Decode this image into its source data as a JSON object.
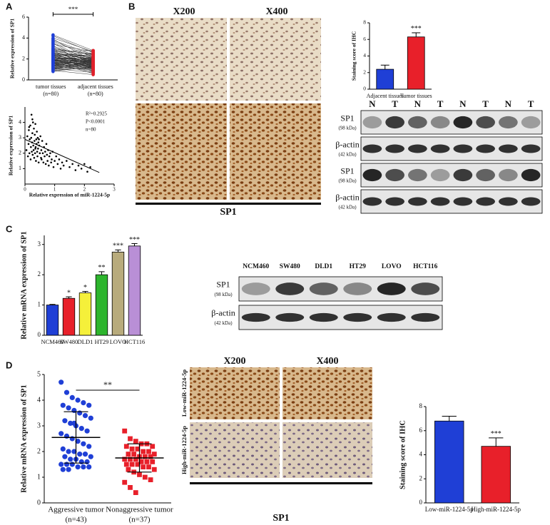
{
  "panel_labels": [
    "A",
    "B",
    "C",
    "D"
  ],
  "chart_data": [
    {
      "type": "paired",
      "ylabel": "Relative expression of SP1",
      "categories": [
        "tumor tissues",
        "adjacent tissues"
      ],
      "category_notes": [
        "(n=80)",
        "(n=80)"
      ],
      "colors": [
        "#1f3fd6",
        "#e0202a"
      ],
      "values": [
        [
          4.2,
          3.9,
          3.7,
          3.5,
          3.4,
          3.3,
          3.2,
          3.1,
          3.0,
          3.0,
          2.9,
          2.9,
          2.8,
          2.8,
          2.7,
          2.7,
          2.6,
          2.6,
          2.5,
          2.5,
          2.5,
          2.4,
          2.4,
          2.4,
          2.3,
          2.3,
          2.3,
          2.2,
          2.2,
          2.2,
          2.1,
          2.1,
          2.1,
          2.0,
          2.0,
          2.0,
          2.0,
          1.9,
          1.9,
          1.9,
          1.9,
          1.8,
          1.8,
          1.8,
          1.8,
          1.7,
          1.7,
          1.7,
          1.7,
          1.6,
          1.6,
          1.6,
          1.6,
          1.5,
          1.5,
          1.5,
          1.5,
          1.4,
          1.4,
          1.4,
          1.4,
          1.3,
          1.3,
          1.3,
          1.2,
          1.2,
          1.2,
          1.1,
          1.1,
          1.1,
          1.0,
          1.0,
          1.0,
          0.9,
          0.9,
          0.8,
          4.0,
          3.6,
          3.8,
          4.3
        ],
        [
          2.6,
          1.8,
          2.2,
          1.4,
          2.7,
          1.1,
          2.0,
          1.6,
          2.4,
          0.9,
          1.7,
          2.5,
          1.2,
          2.1,
          1.5,
          2.8,
          1.0,
          1.9,
          2.3,
          1.3,
          2.0,
          1.6,
          0.8,
          2.2,
          1.4,
          1.8,
          2.6,
          1.1,
          1.7,
          2.4,
          1.5,
          1.9,
          2.1,
          1.2,
          0.7,
          1.6,
          2.0,
          1.3,
          1.8,
          2.5,
          1.0,
          1.7,
          2.3,
          1.4,
          1.9,
          0.6,
          1.5,
          2.1,
          1.2,
          1.8,
          1.6,
          0.9,
          2.0,
          1.3,
          1.7,
          2.2,
          1.1,
          1.5,
          1.9,
          1.4,
          0.8,
          1.6,
          1.2,
          2.0,
          1.0,
          1.8,
          1.4,
          1.3,
          0.7,
          1.7,
          1.5,
          1.1,
          1.9,
          1.2,
          0.5,
          1.3,
          2.7,
          1.6,
          2.4,
          2.8
        ]
      ],
      "ylim": [
        0,
        6
      ],
      "yticks": [
        0,
        2,
        4,
        6
      ],
      "annotation": "***"
    },
    {
      "type": "scatter",
      "xlabel": "Relative expression of miR-1224-5p",
      "ylabel": "Relative expression of SP1",
      "x": [
        0.05,
        0.08,
        0.1,
        0.12,
        0.13,
        0.15,
        0.16,
        0.18,
        0.19,
        0.2,
        0.21,
        0.22,
        0.23,
        0.24,
        0.25,
        0.26,
        0.27,
        0.28,
        0.29,
        0.3,
        0.31,
        0.32,
        0.33,
        0.34,
        0.35,
        0.36,
        0.37,
        0.38,
        0.39,
        0.4,
        0.41,
        0.42,
        0.43,
        0.44,
        0.45,
        0.46,
        0.48,
        0.5,
        0.52,
        0.54,
        0.55,
        0.56,
        0.58,
        0.6,
        0.62,
        0.64,
        0.66,
        0.68,
        0.7,
        0.72,
        0.74,
        0.76,
        0.78,
        0.8,
        0.82,
        0.85,
        0.88,
        0.9,
        0.93,
        0.96,
        1.0,
        1.05,
        1.1,
        1.15,
        1.2,
        1.25,
        1.3,
        1.4,
        1.5,
        1.6,
        1.7,
        1.8,
        1.9,
        2.0,
        2.1,
        2.2,
        0.14,
        0.25,
        0.35,
        0.47
      ],
      "values": [
        2.2,
        3.1,
        1.8,
        2.6,
        3.5,
        2.0,
        2.9,
        3.8,
        1.6,
        2.4,
        3.0,
        4.5,
        2.1,
        2.7,
        3.3,
        1.9,
        4.0,
        2.5,
        2.2,
        3.6,
        1.7,
        2.8,
        3.2,
        2.0,
        3.9,
        2.4,
        1.5,
        2.9,
        2.6,
        3.4,
        2.1,
        1.8,
        3.0,
        2.3,
        2.7,
        1.4,
        2.5,
        2.0,
        3.1,
        1.7,
        2.2,
        1.6,
        2.8,
        2.0,
        1.4,
        2.4,
        1.8,
        2.1,
        1.3,
        2.6,
        1.9,
        1.5,
        2.2,
        1.2,
        1.8,
        2.0,
        1.4,
        1.6,
        2.1,
        1.1,
        1.5,
        1.8,
        1.3,
        1.6,
        1.0,
        1.4,
        1.2,
        1.5,
        1.1,
        1.3,
        0.9,
        1.2,
        1.0,
        1.3,
        0.8,
        1.1,
        3.7,
        4.2,
        2.3,
        2.9
      ],
      "fit": {
        "x": [
          0,
          2.5
        ],
        "y": [
          2.9,
          0.75
        ]
      },
      "xlim": [
        0,
        3
      ],
      "xticks": [
        0,
        1,
        2,
        3
      ],
      "ylim": [
        0,
        5
      ],
      "yticks": [
        1,
        2,
        3,
        4
      ],
      "annotations": [
        "R²=0.2925",
        "P<0.0001",
        "n=80"
      ]
    },
    {
      "type": "bar",
      "ylabel": "Staining score of IHC",
      "categories": [
        "Adjacent tissues",
        "Tumor tissues"
      ],
      "values": [
        2.4,
        6.3
      ],
      "errors": [
        0.5,
        0.5
      ],
      "colors": [
        "#1f3fd6",
        "#e8202a"
      ],
      "stars": [
        null,
        "***"
      ],
      "ylim": [
        0,
        8
      ],
      "yticks": [
        0,
        2,
        4,
        6,
        8
      ]
    },
    {
      "type": "bar",
      "ylabel": "Relative mRNA expression of SP1",
      "categories": [
        "NCM460",
        "SW480",
        "DLD1",
        "HT29",
        "LOVO",
        "HCT116"
      ],
      "values": [
        1,
        1.22,
        1.4,
        2.0,
        2.75,
        2.95
      ],
      "errors": [
        0.02,
        0.05,
        0.05,
        0.1,
        0.07,
        0.08
      ],
      "colors": [
        "#1f3fd6",
        "#e8202a",
        "#f5f03a",
        "#2db52d",
        "#b8ab7c",
        "#b98fd6"
      ],
      "stars": [
        null,
        "*",
        "*",
        "**",
        "***",
        "***"
      ],
      "ylim": [
        0,
        3.3
      ],
      "yticks": [
        0,
        1,
        2,
        3
      ]
    },
    {
      "type": "dotplot",
      "ylabel": "Relative mRNA expression of SP1",
      "categories": [
        "Aggressive tumor",
        "Nonaggressive tumor"
      ],
      "category_notes": [
        "(n=43)",
        "(n=37)"
      ],
      "colors": [
        "#1f3fd6",
        "#e8202a"
      ],
      "values": [
        [
          4.7,
          4.3,
          4.1,
          4.0,
          3.9,
          3.8,
          3.8,
          3.7,
          3.6,
          3.5,
          3.4,
          3.3,
          3.2,
          3.1,
          3.0,
          2.9,
          2.8,
          2.7,
          2.6,
          2.5,
          2.4,
          2.3,
          2.2,
          2.1,
          2.0,
          2.0,
          1.9,
          1.9,
          1.8,
          1.8,
          1.7,
          1.7,
          1.6,
          1.6,
          1.5,
          1.5,
          1.5,
          1.4,
          1.4,
          1.4,
          1.3,
          1.3,
          3.1
        ],
        [
          2.8,
          2.5,
          2.4,
          2.3,
          2.3,
          2.2,
          2.2,
          2.1,
          2.1,
          2.0,
          2.0,
          1.9,
          1.9,
          1.9,
          1.8,
          1.8,
          1.8,
          1.7,
          1.7,
          1.7,
          1.6,
          1.6,
          1.6,
          1.5,
          1.5,
          1.5,
          1.4,
          1.4,
          1.3,
          1.3,
          1.2,
          1.1,
          1.0,
          0.9,
          0.8,
          0.6,
          0.4
        ]
      ],
      "means": [
        2.55,
        1.75
      ],
      "sds": [
        1.0,
        0.55
      ],
      "ylim": [
        0,
        5
      ],
      "yticks": [
        0,
        1,
        2,
        3,
        4,
        5
      ],
      "annotation": "**"
    },
    {
      "type": "bar",
      "ylabel": "Staining score of IHC",
      "categories": [
        "Low-miR-1224-5p",
        "High-miR-1224-5p"
      ],
      "values": [
        6.8,
        4.7
      ],
      "errors": [
        0.4,
        0.7
      ],
      "colors": [
        "#1f3fd6",
        "#e8202a"
      ],
      "stars": [
        null,
        "***"
      ],
      "ylim": [
        0,
        8
      ],
      "yticks": [
        0,
        2,
        4,
        6,
        8
      ]
    }
  ],
  "ihc_b": {
    "columns": [
      "X200",
      "X400"
    ],
    "caption": "SP1"
  },
  "blot_b": {
    "lanes": [
      "N",
      "T",
      "N",
      "T",
      "N",
      "T",
      "N",
      "T"
    ],
    "rows": [
      {
        "name": "SP1",
        "size": "(98 kDa)"
      },
      {
        "name": "β-actin",
        "size": "(42 kDa)"
      },
      {
        "name": "SP1",
        "size": "(98 kDa)"
      },
      {
        "name": "β-actin",
        "size": "(42 kDa)"
      }
    ]
  },
  "blot_c": {
    "lanes": [
      "NCM460",
      "SW480",
      "DLD1",
      "HT29",
      "LOVO",
      "HCT116"
    ],
    "rows": [
      {
        "name": "SP1",
        "size": "(98 kDa)"
      },
      {
        "name": "β-actin",
        "size": "(42 kDa)"
      }
    ]
  },
  "ihc_d": {
    "columns": [
      "X200",
      "X400"
    ],
    "rows": [
      "Low-miR-1224-5p",
      "High-miR-1224-5p"
    ],
    "caption": "SP1"
  }
}
